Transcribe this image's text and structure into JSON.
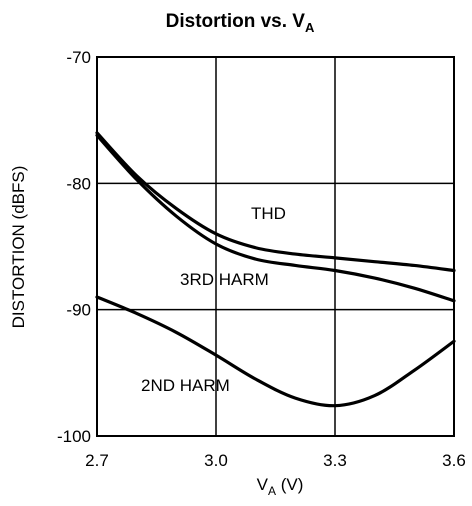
{
  "chart_data": {
    "type": "line",
    "title": "Distortion vs. V",
    "title_subscript": "A",
    "xlabel": "V",
    "xlabel_subscript": "A",
    "xlabel_unit": " (V)",
    "ylabel": "DISTORTION (dBFS)",
    "xlim": [
      2.7,
      3.6
    ],
    "ylim": [
      -100,
      -70
    ],
    "xticks": [
      2.7,
      3.0,
      3.3,
      3.6
    ],
    "xtick_labels": [
      "2.7",
      "3.0",
      "3.3",
      "3.6"
    ],
    "yticks": [
      -70,
      -80,
      -90,
      -100
    ],
    "ytick_labels": [
      "-70",
      "-80",
      "-90",
      "-100"
    ],
    "grid": true,
    "line_color": "#000000",
    "series": [
      {
        "name": "THD",
        "x": [
          2.7,
          2.8,
          2.9,
          3.0,
          3.1,
          3.2,
          3.3,
          3.4,
          3.5,
          3.6
        ],
        "y": [
          -76.0,
          -79.4,
          -82.0,
          -84.0,
          -85.1,
          -85.6,
          -85.9,
          -86.2,
          -86.5,
          -86.9
        ]
      },
      {
        "name": "3RD HARM",
        "x": [
          2.7,
          2.8,
          2.9,
          3.0,
          3.1,
          3.2,
          3.3,
          3.4,
          3.5,
          3.6
        ],
        "y": [
          -76.2,
          -79.7,
          -82.6,
          -84.8,
          -86.0,
          -86.5,
          -86.9,
          -87.5,
          -88.3,
          -89.3
        ]
      },
      {
        "name": "2ND HARM",
        "x": [
          2.7,
          2.8,
          2.9,
          3.0,
          3.1,
          3.2,
          3.3,
          3.4,
          3.5,
          3.6
        ],
        "y": [
          -89.0,
          -90.3,
          -91.8,
          -93.6,
          -95.5,
          -97.0,
          -97.6,
          -96.8,
          -94.8,
          -92.5
        ]
      }
    ]
  }
}
